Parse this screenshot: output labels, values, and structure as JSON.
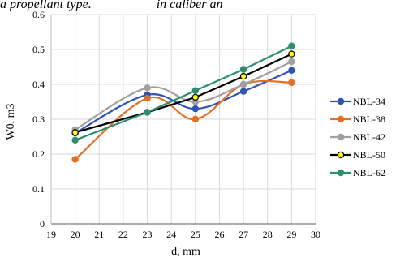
{
  "header_text": "a propellant type.                    in caliber an",
  "chart_data": {
    "type": "line",
    "xlabel": "d, mm",
    "ylabel": "W0, m3",
    "xlim": [
      19,
      30
    ],
    "ylim": [
      0,
      0.6
    ],
    "xticks": [
      "19",
      "20",
      "21",
      "22",
      "23",
      "24",
      "25",
      "26",
      "27",
      "28",
      "29",
      "30"
    ],
    "yticks": [
      "0",
      "0.1",
      "0.2",
      "0.3",
      "0.4",
      "0.5",
      "0.6"
    ],
    "grid": true,
    "legend": "right",
    "x": [
      20,
      23,
      25,
      27,
      29
    ],
    "series": [
      {
        "name": "NBL-34",
        "color": "#2f54b5",
        "values": [
          0.26,
          0.37,
          0.33,
          0.38,
          0.44
        ]
      },
      {
        "name": "NBL-38",
        "color": "#e36f24",
        "values": [
          0.185,
          0.36,
          0.3,
          0.4,
          0.405
        ]
      },
      {
        "name": "NBL-42",
        "color": "#a0a0a0",
        "values": [
          0.27,
          0.39,
          0.35,
          0.4,
          0.465
        ]
      },
      {
        "name": "NBL-50",
        "color": "#000000",
        "values": [
          0.262,
          0.32,
          0.363,
          0.423,
          0.487
        ]
      },
      {
        "name": "NBL-62",
        "color": "#2a8f6b",
        "values": [
          0.24,
          0.32,
          0.382,
          0.443,
          0.51
        ]
      }
    ]
  }
}
